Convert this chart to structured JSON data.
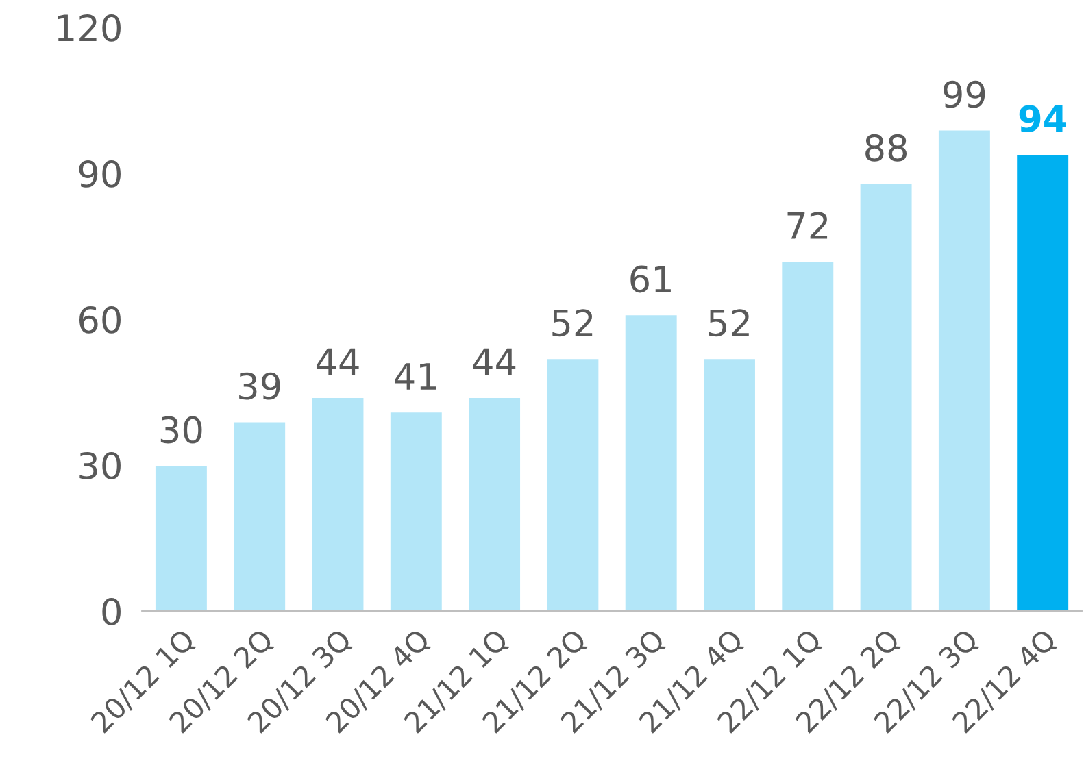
{
  "chart_data": {
    "type": "bar",
    "categories": [
      "20/12 1Q",
      "20/12 2Q",
      "20/12 3Q",
      "20/12 4Q",
      "21/12 1Q",
      "21/12 2Q",
      "21/12 3Q",
      "21/12 4Q",
      "22/12 1Q",
      "22/12 2Q",
      "22/12 3Q",
      "22/12 4Q"
    ],
    "values": [
      30,
      39,
      44,
      41,
      44,
      52,
      61,
      52,
      72,
      88,
      99,
      94
    ],
    "colors": [
      "#b3e6f8",
      "#b3e6f8",
      "#b3e6f8",
      "#b3e6f8",
      "#b3e6f8",
      "#b3e6f8",
      "#b3e6f8",
      "#b3e6f8",
      "#b3e6f8",
      "#b3e6f8",
      "#b3e6f8",
      "#00b0f0"
    ],
    "ylim": [
      0,
      120
    ],
    "yticks": [
      0,
      30,
      60,
      90,
      120
    ],
    "data_labels": true,
    "grid": false,
    "legend": false
  }
}
